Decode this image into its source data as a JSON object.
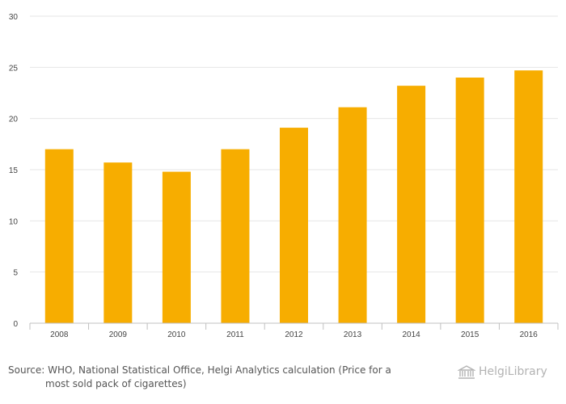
{
  "chart_data": {
    "type": "bar",
    "categories": [
      "2008",
      "2009",
      "2010",
      "2011",
      "2012",
      "2013",
      "2014",
      "2015",
      "2016"
    ],
    "values": [
      17.0,
      15.7,
      14.8,
      17.0,
      19.1,
      21.1,
      23.2,
      24.0,
      24.7
    ],
    "ylim": [
      0,
      30
    ],
    "yticks": [
      0,
      5,
      10,
      15,
      20,
      25,
      30
    ],
    "grid": true,
    "bar_color": "#f7ad00",
    "grid_color": "#e6e6e6",
    "axis_color": "#c0c0c0"
  },
  "footer": {
    "source_line1": "Source: WHO, National Statistical Office, Helgi Analytics calculation (Price for a",
    "source_line2": "most sold pack of cigarettes)",
    "logo_text": "HelgiLibrary"
  }
}
